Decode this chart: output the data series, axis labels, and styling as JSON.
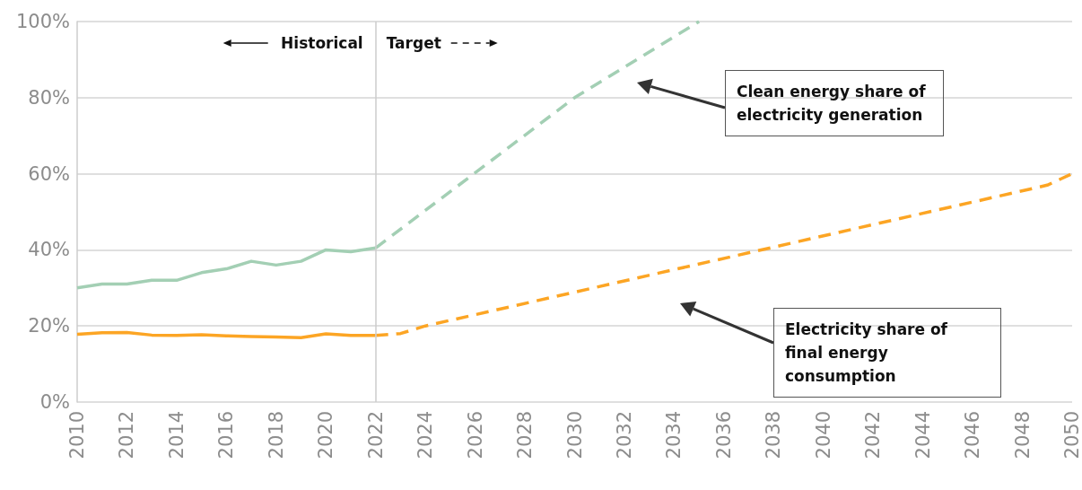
{
  "chart_data": {
    "type": "line",
    "xlim": [
      2010,
      2050
    ],
    "xticks": [
      2010,
      2012,
      2014,
      2016,
      2018,
      2020,
      2022,
      2024,
      2026,
      2028,
      2030,
      2032,
      2034,
      2036,
      2038,
      2040,
      2042,
      2044,
      2046,
      2048,
      2050
    ],
    "ylim": [
      0,
      100
    ],
    "yticks": [
      {
        "value": 0,
        "label": "0%"
      },
      {
        "value": 20,
        "label": "20%"
      },
      {
        "value": 40,
        "label": "40%"
      },
      {
        "value": 60,
        "label": "60%"
      },
      {
        "value": 80,
        "label": "80%"
      },
      {
        "value": 100,
        "label": "100%"
      }
    ],
    "grid": "y",
    "marker": "none",
    "series": [
      {
        "color": "#a3cfb4",
        "line_style": "solid",
        "x": [
          2010,
          2011,
          2012,
          2013,
          2014,
          2015,
          2016,
          2017,
          2018,
          2019,
          2020,
          2021,
          2022
        ],
        "values": [
          30,
          31,
          31,
          32,
          32,
          34,
          35,
          37,
          36,
          37,
          40,
          39.5,
          40.5
        ]
      },
      {
        "color": "#a3cfb4",
        "line_style": "dashed",
        "x": [
          2022,
          2030,
          2035
        ],
        "values": [
          40.5,
          80,
          100
        ]
      },
      {
        "color": "#fca524",
        "line_style": "solid",
        "x": [
          2010,
          2011,
          2012,
          2013,
          2014,
          2015,
          2016,
          2017,
          2018,
          2019,
          2020,
          2021,
          2022
        ],
        "values": [
          17.8,
          18.2,
          18.3,
          17.6,
          17.5,
          17.7,
          17.4,
          17.2,
          17.1,
          16.9,
          17.9,
          17.5,
          17.5
        ]
      },
      {
        "color": "#fca524",
        "line_style": "dashed",
        "x": [
          2022,
          2023,
          2024,
          2049,
          2050
        ],
        "values": [
          17.5,
          18,
          20,
          57,
          60
        ]
      }
    ],
    "ref_lines": [
      {
        "axis": "x",
        "value": 2022,
        "color": "#cccccc"
      }
    ],
    "annotations": [
      "Historical",
      "Target",
      "Clean energy share of electricity generation",
      "Electricity share of final energy consumption"
    ]
  }
}
